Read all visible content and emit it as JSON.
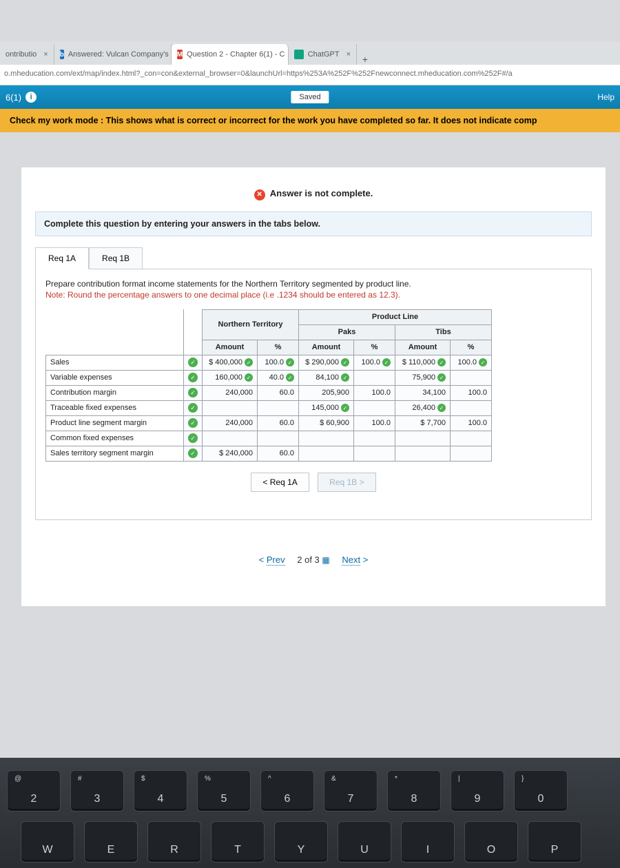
{
  "browser": {
    "tabs": [
      {
        "favicon_bg": "#6b7280",
        "favicon_text": "",
        "title": "ontributio",
        "active": false
      },
      {
        "favicon_bg": "#1e6fb8",
        "favicon_text": "b",
        "title": "Answered: Vulcan Company's",
        "active": false
      },
      {
        "favicon_bg": "#d63a2e",
        "favicon_text": "M",
        "title": "Question 2 - Chapter 6(1) - C",
        "active": true
      },
      {
        "favicon_bg": "#10a37f",
        "favicon_text": "",
        "title": "ChatGPT",
        "active": false
      }
    ],
    "url": "o.mheducation.com/ext/map/index.html?_con=con&external_browser=0&launchUrl=https%253A%252F%252Fnewconnect.mheducation.com%252F#/a"
  },
  "app_header": {
    "left": "6(1)",
    "saved": "Saved",
    "help": "Help"
  },
  "banner": "Check my work mode : This shows what is correct or incorrect for the work you have completed so far. It does not indicate comp",
  "status": "Answer is not complete.",
  "instruction": "Complete this question by entering your answers in the tabs below.",
  "qtabs": {
    "a": "Req 1A",
    "b": "Req 1B"
  },
  "prepare": "Prepare contribution format income statements for the Northern Territory segmented by product line.",
  "note": "Note: Round the percentage answers to one decimal place (i.e .1234 should be entered as 12.3).",
  "headers": {
    "product_line": "Product Line",
    "nt": "Northern Territory",
    "paks": "Paks",
    "tibs": "Tibs",
    "amount": "Amount",
    "pct": "%"
  },
  "rows": {
    "sales": {
      "label": "Sales",
      "chk": true,
      "nt_amt": "$ 400,000",
      "nt_amt_chk": true,
      "nt_pct": "100.0",
      "nt_pct_chk": true,
      "p_amt": "$ 290,000",
      "p_amt_chk": true,
      "p_pct": "100.0",
      "p_pct_chk": true,
      "t_amt": "$ 110,000",
      "t_amt_chk": true,
      "t_pct": "100.0",
      "t_pct_chk": true
    },
    "var": {
      "label": "Variable expenses",
      "chk": true,
      "nt_amt": "160,000",
      "nt_amt_chk": true,
      "nt_pct": "40.0",
      "nt_pct_chk": true,
      "p_amt": "84,100",
      "p_amt_chk": true,
      "p_pct": "",
      "p_pct_chk": false,
      "t_amt": "75,900",
      "t_amt_chk": true,
      "t_pct": "",
      "t_pct_chk": false
    },
    "cm": {
      "label": "Contribution margin",
      "chk": true,
      "nt_amt": "240,000",
      "nt_amt_chk": false,
      "nt_pct": "60.0",
      "nt_pct_chk": false,
      "p_amt": "205,900",
      "p_amt_chk": false,
      "p_pct": "100.0",
      "p_pct_chk": false,
      "t_amt": "34,100",
      "t_amt_chk": false,
      "t_pct": "100.0",
      "t_pct_chk": false
    },
    "trace": {
      "label": "Traceable fixed expenses",
      "chk": true,
      "nt_amt": "",
      "nt_amt_chk": false,
      "nt_pct": "",
      "nt_pct_chk": false,
      "p_amt": "145,000",
      "p_amt_chk": true,
      "p_pct": "",
      "p_pct_chk": false,
      "t_amt": "26,400",
      "t_amt_chk": true,
      "t_pct": "",
      "t_pct_chk": false
    },
    "plsm": {
      "label": "Product line segment margin",
      "chk": true,
      "nt_amt": "240,000",
      "nt_amt_chk": false,
      "nt_pct": "60.0",
      "nt_pct_chk": false,
      "p_amt": "$   60,900",
      "p_amt_chk": false,
      "p_pct": "100.0",
      "p_pct_chk": false,
      "t_amt": "$     7,700",
      "t_amt_chk": false,
      "t_pct": "100.0",
      "t_pct_chk": false
    },
    "common": {
      "label": "Common fixed expenses",
      "chk": true,
      "nt_amt": "",
      "nt_pct": "",
      "p_amt": "",
      "p_pct": "",
      "t_amt": "",
      "t_pct": ""
    },
    "stsm": {
      "label": "Sales territory segment margin",
      "chk": true,
      "nt_amt": "$ 240,000",
      "nt_amt_chk": false,
      "nt_pct": "60.0",
      "nt_pct_chk": false,
      "p_amt": "",
      "p_pct": "",
      "t_amt": "",
      "t_pct": ""
    }
  },
  "navbtns": {
    "prev": "<   Req 1A",
    "next": "Req 1B   >"
  },
  "pager": {
    "prev": "Prev",
    "pos": "2 of 3",
    "next": "Next"
  },
  "keys_r1": [
    {
      "top": "@",
      "bot": "2"
    },
    {
      "top": "#",
      "bot": "3"
    },
    {
      "top": "$",
      "bot": "4"
    },
    {
      "top": "%",
      "bot": "5"
    },
    {
      "top": "^",
      "bot": "6"
    },
    {
      "top": "&",
      "bot": "7"
    },
    {
      "top": "*",
      "bot": "8"
    },
    {
      "top": "|",
      "bot": "9"
    },
    {
      "top": "}",
      "bot": "0"
    }
  ],
  "keys_r2": [
    {
      "bot": "W"
    },
    {
      "bot": "E"
    },
    {
      "bot": "R"
    },
    {
      "bot": "T"
    },
    {
      "bot": "Y"
    },
    {
      "bot": "U"
    },
    {
      "bot": "I"
    },
    {
      "bot": "O"
    },
    {
      "bot": "P"
    }
  ]
}
